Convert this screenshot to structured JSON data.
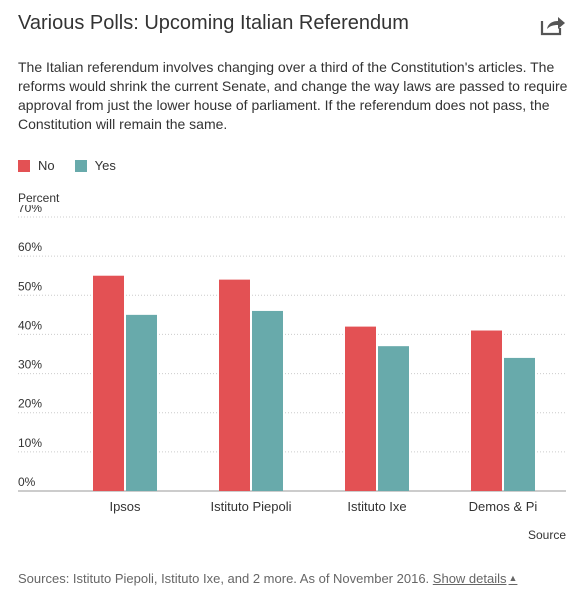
{
  "header": {
    "title": "Various Polls: Upcoming Italian Referendum",
    "share_icon": "share-arrow-icon"
  },
  "description": "The Italian referendum involves changing over a third of the Constitution's articles. The reforms would shrink the current Senate, and change the way laws are passed to require approval from just the lower house of parliament. If the referendum does not pass, the Constitution will remain the same.",
  "legend": [
    {
      "label": "No",
      "color": "#e35154"
    },
    {
      "label": "Yes",
      "color": "#68aaab"
    }
  ],
  "chart_data": {
    "type": "bar",
    "ylabel": "Percent",
    "categories": [
      "Ipsos",
      "Istituto Piepoli",
      "Istituto Ixe",
      "Demos & Pi"
    ],
    "series": [
      {
        "name": "No",
        "color": "#e35154",
        "values": [
          55,
          54,
          42,
          41
        ]
      },
      {
        "name": "Yes",
        "color": "#68aaab",
        "values": [
          45,
          46,
          37,
          34
        ]
      }
    ],
    "ylim": [
      0,
      70
    ],
    "yticks": [
      "0%",
      "10%",
      "20%",
      "30%",
      "40%",
      "50%",
      "60%",
      "70%"
    ],
    "grid": true
  },
  "source_label": "Source",
  "footer": {
    "text": "Sources: Istituto Piepoli, Istituto Ixe, and 2 more. As of November 2016.",
    "link": "Show details",
    "caret": "▲"
  }
}
